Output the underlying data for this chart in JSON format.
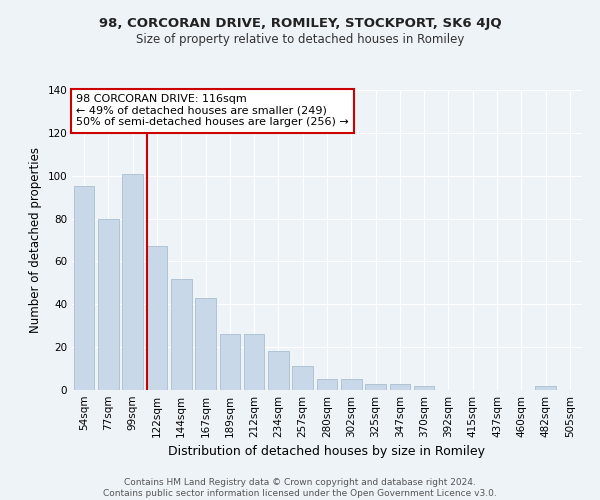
{
  "title": "98, CORCORAN DRIVE, ROMILEY, STOCKPORT, SK6 4JQ",
  "subtitle": "Size of property relative to detached houses in Romiley",
  "xlabel": "Distribution of detached houses by size in Romiley",
  "ylabel": "Number of detached properties",
  "categories": [
    "54sqm",
    "77sqm",
    "99sqm",
    "122sqm",
    "144sqm",
    "167sqm",
    "189sqm",
    "212sqm",
    "234sqm",
    "257sqm",
    "280sqm",
    "302sqm",
    "325sqm",
    "347sqm",
    "370sqm",
    "392sqm",
    "415sqm",
    "437sqm",
    "460sqm",
    "482sqm",
    "505sqm"
  ],
  "values": [
    95,
    80,
    101,
    67,
    52,
    43,
    26,
    26,
    18,
    11,
    5,
    5,
    3,
    3,
    2,
    0,
    0,
    0,
    0,
    2,
    0
  ],
  "bar_color": "#c8d8e8",
  "bar_edge_color": "#a8bece",
  "vline_color": "#cc0000",
  "annotation_lines": [
    "98 CORCORAN DRIVE: 116sqm",
    "← 49% of detached houses are smaller (249)",
    "50% of semi-detached houses are larger (256) →"
  ],
  "annotation_box_color": "#cc0000",
  "ylim": [
    0,
    140
  ],
  "yticks": [
    0,
    20,
    40,
    60,
    80,
    100,
    120,
    140
  ],
  "background_color": "#eef3f8",
  "grid_color": "#ffffff",
  "title_fontsize": 9.5,
  "subtitle_fontsize": 8.5,
  "ylabel_fontsize": 8.5,
  "xlabel_fontsize": 9,
  "tick_fontsize": 7.5,
  "footer": "Contains HM Land Registry data © Crown copyright and database right 2024.\nContains public sector information licensed under the Open Government Licence v3.0."
}
